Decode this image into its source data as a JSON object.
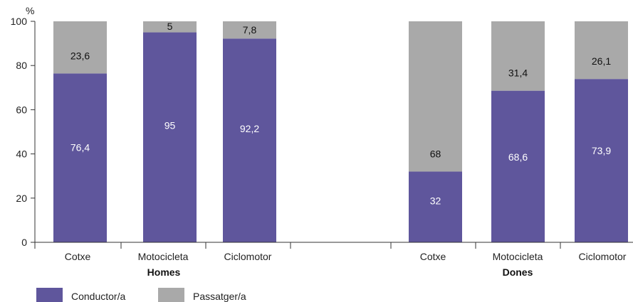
{
  "chart_data": {
    "type": "bar",
    "stacked": true,
    "yunit": "%",
    "ylim": [
      0,
      100
    ],
    "yticks": [
      0,
      20,
      40,
      60,
      80,
      100
    ],
    "grid": false,
    "legend_position": "bottom-left",
    "colors": {
      "conductor": "#5f569c",
      "passatger": "#a9a9a9"
    },
    "groups": [
      {
        "name": "Homes",
        "categories": [
          "Cotxe",
          "Motocicleta",
          "Ciclomotor"
        ],
        "series": [
          {
            "name": "Conductor/a",
            "values": [
              76.4,
              95,
              92.2
            ],
            "labels": [
              "76,4",
              "95",
              "92,2"
            ]
          },
          {
            "name": "Passatger/a",
            "values": [
              23.6,
              5,
              7.8
            ],
            "labels": [
              "23,6",
              "5",
              "7,8"
            ]
          }
        ]
      },
      {
        "name": "Dones",
        "categories": [
          "Cotxe",
          "Motocicleta",
          "Ciclomotor"
        ],
        "series": [
          {
            "name": "Conductor/a",
            "values": [
              32,
              68.6,
              73.9
            ],
            "labels": [
              "32",
              "68,6",
              "73,9"
            ]
          },
          {
            "name": "Passatger/a",
            "values": [
              68,
              31.4,
              26.1
            ],
            "labels": [
              "68",
              "31,4",
              "26,1"
            ]
          }
        ]
      }
    ]
  }
}
